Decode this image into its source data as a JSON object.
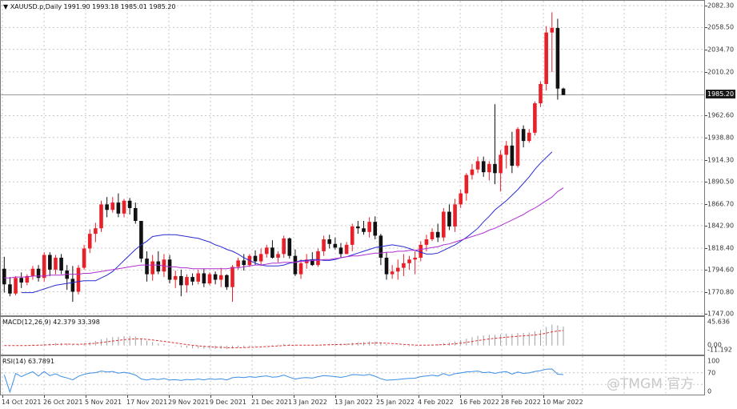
{
  "main_title": "XAUUSD.p,Daily  1991.90 1993.18 1985.01 1985.20",
  "macd_title": "MACD(12,26,9) 42.379 33.398",
  "rsi_title": "RSI(14) 63.7891",
  "current_price_label": "1985.20",
  "watermark": "@TMGM 官方",
  "price_axis_labels": [
    "2082.30",
    "2058.50",
    "2034.70",
    "2010.20",
    "1985.20",
    "1962.60",
    "1938.80",
    "1914.30",
    "1890.50",
    "1866.70",
    "1842.90",
    "1818.40",
    "1794.60",
    "1770.80",
    "1747.00"
  ],
  "macd_axis_labels": [
    "45.636",
    "0.00",
    "-11.192"
  ],
  "rsi_axis_labels": [
    "100",
    "70",
    "0"
  ],
  "date_labels": [
    "14 Oct 2021",
    "26 Oct 2021",
    "5 Nov 2021",
    "17 Nov 2021",
    "29 Nov 2021",
    "9 Dec 2021",
    "21 Dec 2021",
    "3 Jan 2022",
    "13 Jan 2022",
    "25 Jan 2022",
    "4 Feb 2022",
    "16 Feb 2022",
    "28 Feb 2022",
    "10 Mar 2022"
  ],
  "colors": {
    "bull": "#e8202a",
    "bear": "#111111",
    "ma_fast": "#2b2bd4",
    "ma_slow": "#b030d0",
    "macd_signal": "#e03030",
    "macd_hist": "#a0a0a0",
    "rsi_line": "#3a8ee6",
    "grid": "#c8c8c8"
  },
  "chart_data": {
    "type": "candlestick",
    "symbol": "XAUUSD.p",
    "timeframe": "Daily",
    "ylim": [
      1747.0,
      2082.3
    ],
    "candles": [
      [
        1796,
        1809,
        1770,
        1779
      ],
      [
        1779,
        1787,
        1766,
        1769
      ],
      [
        1769,
        1788,
        1767,
        1786
      ],
      [
        1786,
        1792,
        1775,
        1781
      ],
      [
        1781,
        1790,
        1778,
        1788
      ],
      [
        1788,
        1799,
        1784,
        1796
      ],
      [
        1796,
        1800,
        1782,
        1786
      ],
      [
        1786,
        1814,
        1782,
        1811
      ],
      [
        1811,
        1814,
        1788,
        1795
      ],
      [
        1795,
        1811,
        1790,
        1808
      ],
      [
        1808,
        1812,
        1790,
        1794
      ],
      [
        1794,
        1800,
        1773,
        1785
      ],
      [
        1785,
        1799,
        1760,
        1771
      ],
      [
        1771,
        1800,
        1768,
        1797
      ],
      [
        1797,
        1822,
        1795,
        1818
      ],
      [
        1818,
        1839,
        1813,
        1834
      ],
      [
        1834,
        1846,
        1825,
        1840
      ],
      [
        1840,
        1870,
        1836,
        1866
      ],
      [
        1866,
        1874,
        1852,
        1860
      ],
      [
        1860,
        1874,
        1857,
        1868
      ],
      [
        1868,
        1878,
        1852,
        1856
      ],
      [
        1856,
        1872,
        1852,
        1870
      ],
      [
        1870,
        1873,
        1855,
        1862
      ],
      [
        1862,
        1868,
        1845,
        1848
      ],
      [
        1848,
        1848,
        1803,
        1807
      ],
      [
        1807,
        1815,
        1782,
        1790
      ],
      [
        1790,
        1811,
        1783,
        1804
      ],
      [
        1804,
        1815,
        1790,
        1793
      ],
      [
        1793,
        1812,
        1787,
        1806
      ],
      [
        1806,
        1811,
        1780,
        1784
      ],
      [
        1784,
        1794,
        1775,
        1788
      ],
      [
        1788,
        1795,
        1766,
        1778
      ],
      [
        1778,
        1790,
        1770,
        1787
      ],
      [
        1787,
        1791,
        1778,
        1782
      ],
      [
        1782,
        1795,
        1779,
        1791
      ],
      [
        1791,
        1796,
        1776,
        1780
      ],
      [
        1780,
        1792,
        1778,
        1790
      ],
      [
        1790,
        1793,
        1779,
        1784
      ],
      [
        1784,
        1797,
        1776,
        1789
      ],
      [
        1789,
        1790,
        1773,
        1776
      ],
      [
        1776,
        1800,
        1760,
        1798
      ],
      [
        1798,
        1808,
        1795,
        1805
      ],
      [
        1805,
        1812,
        1794,
        1800
      ],
      [
        1800,
        1812,
        1798,
        1810
      ],
      [
        1810,
        1816,
        1800,
        1804
      ],
      [
        1804,
        1818,
        1799,
        1812
      ],
      [
        1812,
        1822,
        1808,
        1819
      ],
      [
        1819,
        1827,
        1807,
        1808
      ],
      [
        1808,
        1815,
        1803,
        1812
      ],
      [
        1812,
        1832,
        1808,
        1829
      ],
      [
        1829,
        1830,
        1807,
        1810
      ],
      [
        1810,
        1817,
        1788,
        1790
      ],
      [
        1790,
        1806,
        1785,
        1802
      ],
      [
        1802,
        1812,
        1796,
        1806
      ],
      [
        1806,
        1814,
        1799,
        1800
      ],
      [
        1800,
        1818,
        1798,
        1815
      ],
      [
        1815,
        1832,
        1810,
        1828
      ],
      [
        1828,
        1833,
        1818,
        1823
      ],
      [
        1823,
        1830,
        1817,
        1819
      ],
      [
        1819,
        1824,
        1808,
        1812
      ],
      [
        1812,
        1825,
        1812,
        1822
      ],
      [
        1822,
        1845,
        1815,
        1842
      ],
      [
        1842,
        1848,
        1834,
        1840
      ],
      [
        1840,
        1848,
        1833,
        1836
      ],
      [
        1836,
        1852,
        1830,
        1847
      ],
      [
        1847,
        1853,
        1828,
        1832
      ],
      [
        1832,
        1834,
        1800,
        1808
      ],
      [
        1808,
        1814,
        1784,
        1790
      ],
      [
        1790,
        1800,
        1785,
        1793
      ],
      [
        1793,
        1806,
        1784,
        1797
      ],
      [
        1797,
        1812,
        1788,
        1802
      ],
      [
        1802,
        1810,
        1795,
        1806
      ],
      [
        1806,
        1815,
        1790,
        1808
      ],
      [
        1808,
        1826,
        1804,
        1822
      ],
      [
        1822,
        1833,
        1815,
        1828
      ],
      [
        1828,
        1840,
        1826,
        1836
      ],
      [
        1836,
        1845,
        1825,
        1830
      ],
      [
        1830,
        1862,
        1826,
        1858
      ],
      [
        1858,
        1866,
        1838,
        1842
      ],
      [
        1842,
        1872,
        1836,
        1866
      ],
      [
        1866,
        1882,
        1862,
        1878
      ],
      [
        1878,
        1900,
        1870,
        1898
      ],
      [
        1898,
        1910,
        1893,
        1904
      ],
      [
        1904,
        1918,
        1900,
        1913
      ],
      [
        1913,
        1918,
        1896,
        1901
      ],
      [
        1901,
        1913,
        1892,
        1910
      ],
      [
        1910,
        1975,
        1888,
        1900
      ],
      [
        1900,
        1925,
        1880,
        1920
      ],
      [
        1920,
        1935,
        1905,
        1930
      ],
      [
        1930,
        1945,
        1900,
        1908
      ],
      [
        1908,
        1950,
        1906,
        1948
      ],
      [
        1948,
        1952,
        1928,
        1935
      ],
      [
        1935,
        1948,
        1933,
        1944
      ],
      [
        1944,
        1978,
        1941,
        1976
      ],
      [
        1976,
        2000,
        1972,
        1997
      ],
      [
        1997,
        2060,
        1990,
        2053
      ],
      [
        2053,
        2075,
        2010,
        2058
      ],
      [
        2058,
        2068,
        1980,
        1992
      ],
      [
        1992,
        1993,
        1985,
        1985
      ]
    ],
    "ma_fast": {
      "start_index": 3,
      "values": [
        1770,
        1770,
        1770,
        1772,
        1774,
        1776,
        1778,
        1779,
        1780,
        1781,
        1782,
        1783,
        1783,
        1783,
        1786,
        1789,
        1793,
        1799,
        1805,
        1811,
        1817,
        1822,
        1826,
        1831,
        1832,
        1833,
        1833,
        1833,
        1832,
        1831,
        1830,
        1829,
        1827,
        1825,
        1822,
        1820,
        1817,
        1815,
        1812,
        1808,
        1805,
        1802,
        1800,
        1799,
        1799,
        1799,
        1800,
        1802,
        1803,
        1805,
        1805,
        1806,
        1806,
        1805,
        1805,
        1806,
        1808,
        1809,
        1811,
        1813,
        1815,
        1817,
        1819,
        1820,
        1821,
        1822,
        1821,
        1820,
        1818,
        1816,
        1814,
        1812,
        1812,
        1813,
        1816,
        1819,
        1822,
        1826,
        1830,
        1835,
        1840,
        1847,
        1853,
        1860,
        1865,
        1870,
        1876,
        1882,
        1889,
        1896,
        1904,
        1911,
        1917,
        1923
      ]
    },
    "ma_slow": {
      "start_index": 0,
      "values": [
        1786,
        1786,
        1787,
        1787,
        1787,
        1788,
        1788,
        1788,
        1789,
        1789,
        1789,
        1790,
        1790,
        1790,
        1791,
        1791,
        1792,
        1793,
        1794,
        1795,
        1796,
        1797,
        1798,
        1799,
        1800,
        1800,
        1800,
        1800,
        1799,
        1798,
        1798,
        1797,
        1797,
        1796,
        1796,
        1796,
        1796,
        1796,
        1796,
        1796,
        1797,
        1797,
        1798,
        1799,
        1800,
        1800,
        1801,
        1802,
        1802,
        1803,
        1803,
        1803,
        1804,
        1804,
        1805,
        1805,
        1806,
        1806,
        1807,
        1808,
        1809,
        1810,
        1810,
        1811,
        1812,
        1813,
        1813,
        1814,
        1814,
        1815,
        1815,
        1816,
        1816,
        1817,
        1818,
        1819,
        1820,
        1822,
        1823,
        1825,
        1827,
        1829,
        1831,
        1833,
        1835,
        1838,
        1840,
        1843,
        1846,
        1849,
        1852,
        1855,
        1859,
        1862,
        1866,
        1870,
        1874,
        1880,
        1884
      ]
    },
    "macd": {
      "ylim": [
        -11.192,
        45.636
      ],
      "current_macd": 42.379,
      "current_signal": 33.398
    },
    "rsi": {
      "ylim": [
        0,
        100
      ],
      "period": 14,
      "current": 63.7891
    }
  }
}
